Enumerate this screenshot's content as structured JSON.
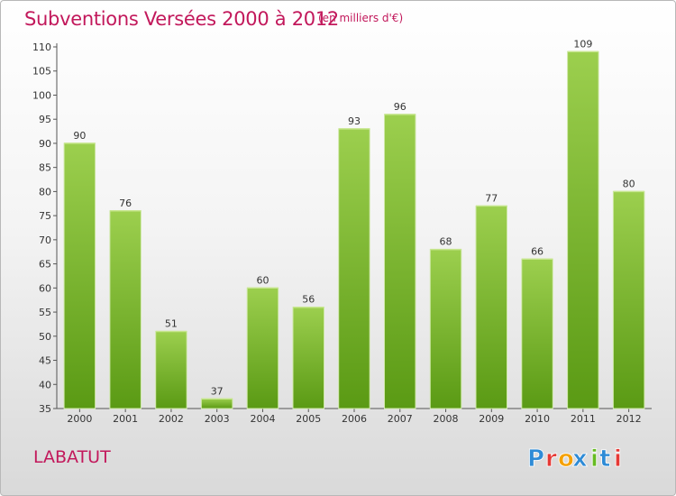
{
  "header": {
    "title": "Subventions Versées 2000 à 2012",
    "subtitle": "(en milliers d'€)"
  },
  "footer": {
    "commune": "LABATUT",
    "brand_name": "Proxiti",
    "brand_letters": [
      "P",
      "r",
      "o",
      "x",
      "i",
      "t",
      "i"
    ],
    "brand_colors": [
      "#2e8bd6",
      "#e53935",
      "#f5a000",
      "#2e8bd6",
      "#66bb22",
      "#2e8bd6",
      "#e53935"
    ]
  },
  "colors": {
    "accent": "#c2185b",
    "bar_top": "#9ccf4e",
    "bar_bottom": "#5a9a14"
  },
  "chart_data": {
    "type": "bar",
    "categories": [
      "2000",
      "2001",
      "2002",
      "2003",
      "2004",
      "2005",
      "2006",
      "2007",
      "2008",
      "2009",
      "2010",
      "2011",
      "2012"
    ],
    "values": [
      90,
      76,
      51,
      37,
      60,
      56,
      93,
      96,
      68,
      77,
      66,
      109,
      80
    ],
    "ylim": [
      35,
      110
    ],
    "yticks": [
      35,
      40,
      45,
      50,
      55,
      60,
      65,
      70,
      75,
      80,
      85,
      90,
      95,
      100,
      105,
      110
    ],
    "grid": false,
    "data_labels": true
  }
}
